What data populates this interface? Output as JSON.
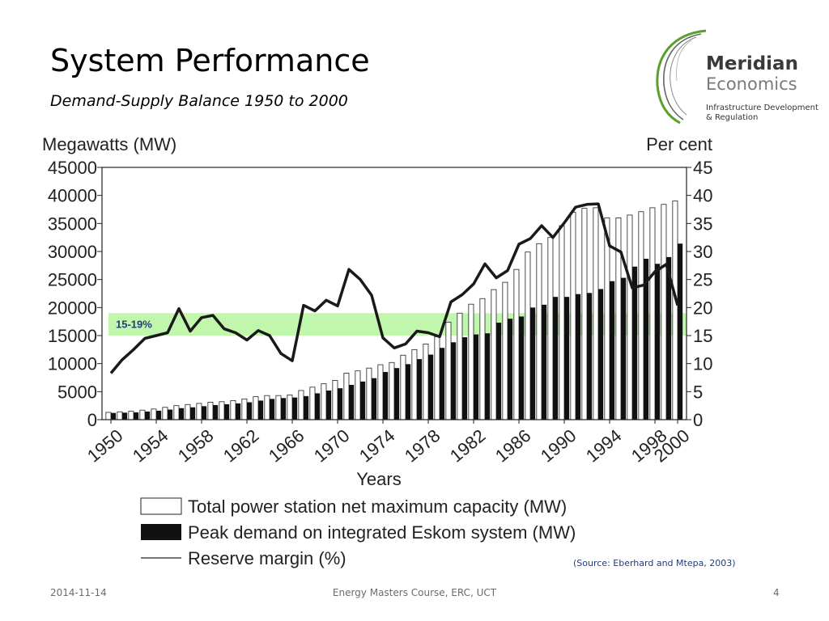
{
  "slide": {
    "title": "System Performance",
    "subtitle": "Demand-Supply Balance 1950 to 2000"
  },
  "logo": {
    "name": "Meridian",
    "sub": "Economics",
    "tagline_1": "Infrastructure Development",
    "tagline_2": "& Regulation",
    "colors": {
      "arc_green": "#5aa02c",
      "arc_dark": "#555555"
    }
  },
  "source": "(Source: Eberhard and Mtepa, 2003)",
  "footer": {
    "date": "2014-11-14",
    "center": "Energy Masters Course, ERC, UCT",
    "page": "4"
  },
  "chart_data": {
    "type": "bar",
    "left_axis_label": "Megawatts (MW)",
    "right_axis_label": "Per cent",
    "xlabel": "Years",
    "ylim_left": [
      0,
      45000
    ],
    "ylim_right": [
      0,
      45
    ],
    "yticks_left": [
      "0",
      "5000",
      "10000",
      "15000",
      "20000",
      "25000",
      "30000",
      "35000",
      "40000",
      "45000"
    ],
    "yticks_right": [
      "0",
      "5",
      "10",
      "15",
      "20",
      "25",
      "30",
      "35",
      "40",
      "45"
    ],
    "xticks": [
      "1950",
      "1954",
      "1958",
      "1962",
      "1966",
      "1970",
      "1974",
      "1978",
      "1982",
      "1986",
      "1990",
      "1994",
      "1998",
      "2000"
    ],
    "years": [
      1950,
      1951,
      1952,
      1953,
      1954,
      1955,
      1956,
      1957,
      1958,
      1959,
      1960,
      1961,
      1962,
      1963,
      1964,
      1965,
      1966,
      1967,
      1968,
      1969,
      1970,
      1971,
      1972,
      1973,
      1974,
      1975,
      1976,
      1977,
      1978,
      1979,
      1980,
      1981,
      1982,
      1983,
      1984,
      1985,
      1986,
      1987,
      1988,
      1989,
      1990,
      1991,
      1992,
      1993,
      1994,
      1995,
      1996,
      1997,
      1998,
      1999,
      2000
    ],
    "series": [
      {
        "name": "Total power station net maximum capacity (MW)",
        "type": "bar",
        "axis": "left",
        "color": "#ffffff",
        "values": [
          1300,
          1400,
          1500,
          1700,
          1900,
          2200,
          2500,
          2700,
          2900,
          3100,
          3200,
          3400,
          3700,
          4100,
          4300,
          4300,
          4400,
          5200,
          5800,
          6400,
          7000,
          8300,
          8700,
          9200,
          9800,
          10200,
          11500,
          12500,
          13500,
          14800,
          17400,
          19000,
          20600,
          21600,
          23200,
          24500,
          26800,
          29900,
          31400,
          32500,
          34600,
          37000,
          37700,
          37800,
          36000,
          36000,
          36500,
          37100,
          37800,
          38400,
          39000
        ]
      },
      {
        "name": "Peak demand on integrated Eskom system (MW)",
        "type": "bar",
        "axis": "left",
        "color": "#111111",
        "values": [
          1200,
          1250,
          1300,
          1450,
          1600,
          1800,
          2050,
          2200,
          2400,
          2600,
          2750,
          2900,
          3100,
          3400,
          3700,
          3850,
          3950,
          4200,
          4700,
          5200,
          5600,
          6200,
          6800,
          7400,
          8500,
          9200,
          9900,
          10800,
          11600,
          12800,
          13800,
          14700,
          15200,
          15400,
          17300,
          18000,
          18400,
          20000,
          20500,
          21900,
          21900,
          22400,
          22600,
          23300,
          24700,
          25300,
          27300,
          28700,
          27800,
          29000,
          31400
        ]
      },
      {
        "name": "Reserve margin (%)",
        "type": "line",
        "axis": "right",
        "color": "#1a1a1a",
        "values": [
          8.3,
          10.7,
          12.5,
          14.5,
          15.0,
          15.5,
          19.8,
          15.8,
          18.2,
          18.6,
          16.2,
          15.5,
          14.2,
          15.9,
          15.0,
          11.8,
          10.5,
          20.4,
          19.4,
          21.3,
          20.3,
          26.8,
          25.0,
          22.2,
          14.6,
          12.8,
          13.5,
          15.8,
          15.5,
          14.8,
          21.0,
          22.3,
          24.2,
          27.8,
          25.3,
          26.6,
          31.3,
          32.3,
          34.6,
          32.5,
          35.1,
          37.9,
          38.4,
          38.5,
          31.0,
          29.9,
          23.5,
          24.0,
          26.4,
          27.7,
          20.4
        ]
      }
    ],
    "highlight_band": {
      "from": 15,
      "to": 19,
      "axis": "right",
      "label": "15-19%",
      "color": "#a6f28a"
    },
    "legend_position": "bottom"
  }
}
